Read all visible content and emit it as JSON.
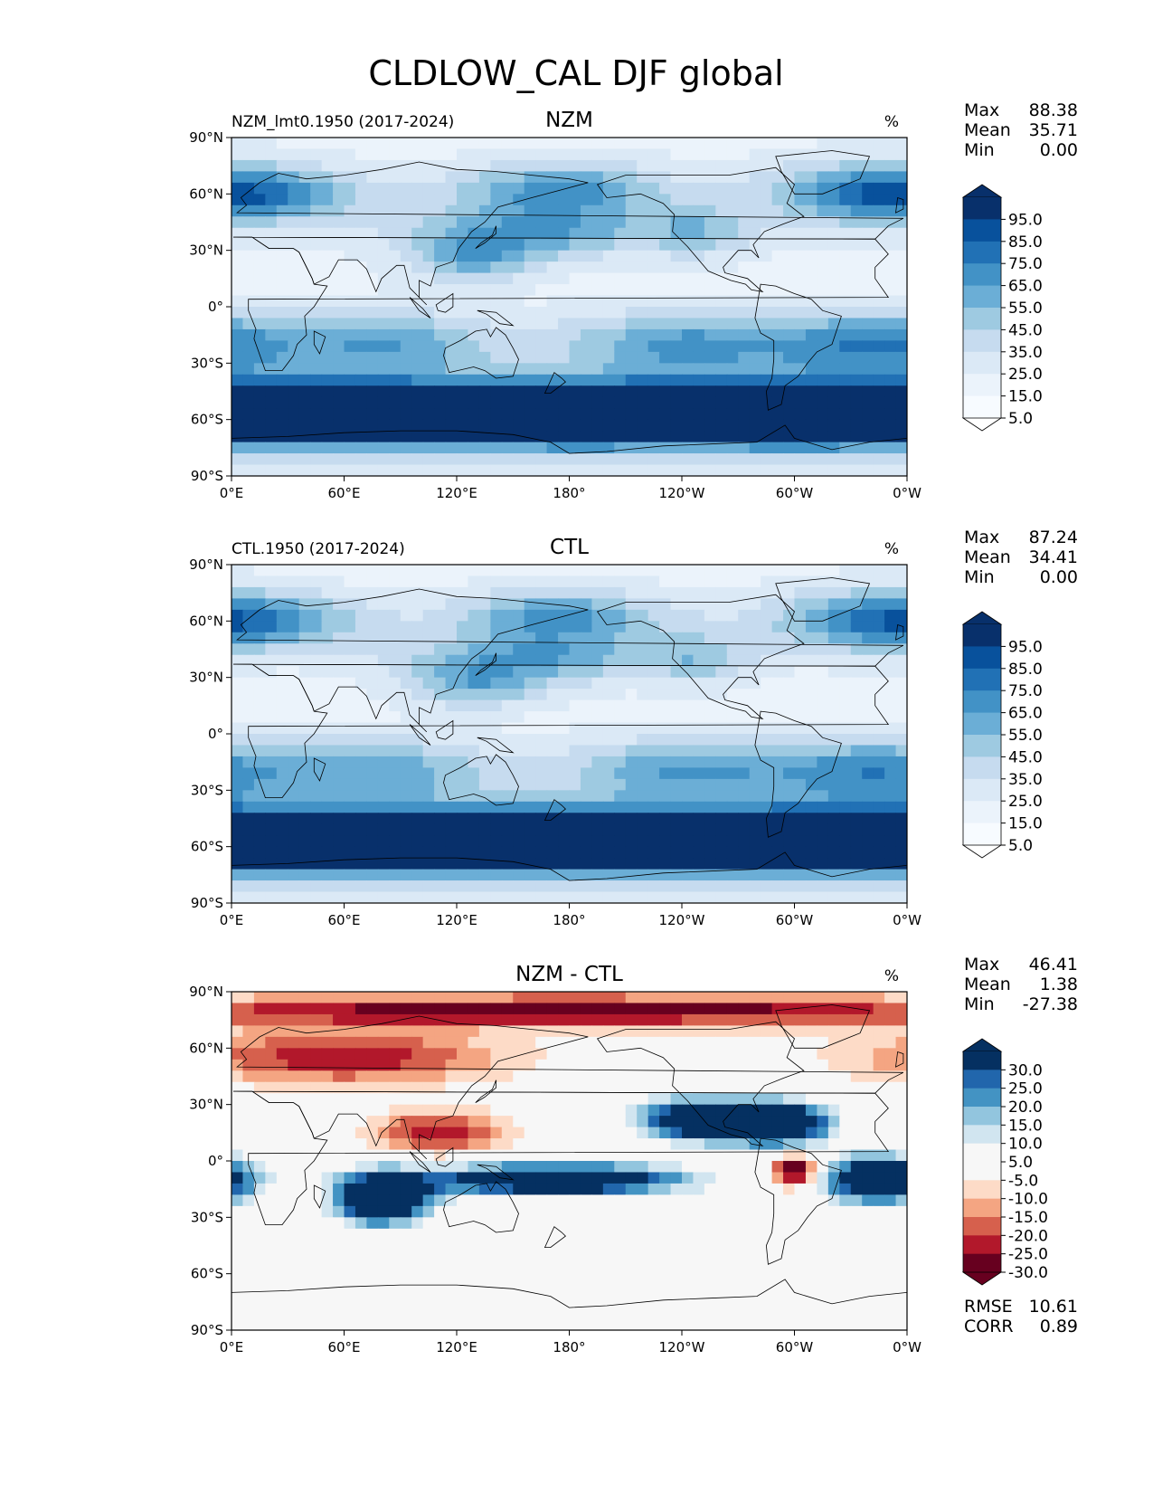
{
  "title": "CLDLOW_CAL DJF global",
  "axes": {
    "lat_ticks": [
      "90°N",
      "60°N",
      "30°N",
      "0°",
      "30°S",
      "60°S",
      "90°S"
    ],
    "lon_ticks": [
      "0°E",
      "60°E",
      "120°E",
      "180°",
      "120°W",
      "60°W",
      "0°W"
    ]
  },
  "panels": [
    {
      "id": "nzm",
      "title": "NZM",
      "left_label": "NZM_lmt0.1950 (2017-2024)",
      "units": "%",
      "stats": [
        {
          "label": "Max",
          "value": "88.38"
        },
        {
          "label": "Mean",
          "value": "35.71"
        },
        {
          "label": "Min",
          "value": "0.00"
        }
      ],
      "colorbar": {
        "type": "sequential",
        "labels": [
          "95.0",
          "85.0",
          "75.0",
          "65.0",
          "55.0",
          "45.0",
          "35.0",
          "25.0",
          "15.0",
          "5.0"
        ],
        "colors": [
          "#08306b",
          "#08519c",
          "#2171b5",
          "#4292c6",
          "#6baed6",
          "#9ecae1",
          "#c6dbef",
          "#dbe9f6",
          "#ebf3fb",
          "#f7fbff"
        ],
        "over": "#08306b",
        "under": "#ffffff"
      },
      "extra": []
    },
    {
      "id": "ctl",
      "title": "CTL",
      "left_label": "CTL.1950 (2017-2024)",
      "units": "%",
      "stats": [
        {
          "label": "Max",
          "value": "87.24"
        },
        {
          "label": "Mean",
          "value": "34.41"
        },
        {
          "label": "Min",
          "value": "0.00"
        }
      ],
      "colorbar": {
        "type": "sequential",
        "labels": [
          "95.0",
          "85.0",
          "75.0",
          "65.0",
          "55.0",
          "45.0",
          "35.0",
          "25.0",
          "15.0",
          "5.0"
        ],
        "colors": [
          "#08306b",
          "#08519c",
          "#2171b5",
          "#4292c6",
          "#6baed6",
          "#9ecae1",
          "#c6dbef",
          "#dbe9f6",
          "#ebf3fb",
          "#f7fbff"
        ],
        "over": "#08306b",
        "under": "#ffffff"
      },
      "extra": []
    },
    {
      "id": "diff",
      "title": "NZM - CTL",
      "left_label": "",
      "units": "%",
      "stats": [
        {
          "label": "Max",
          "value": "46.41"
        },
        {
          "label": "Mean",
          "value": "1.38"
        },
        {
          "label": "Min",
          "value": "-27.38"
        }
      ],
      "colorbar": {
        "type": "diverging",
        "labels": [
          "30.0",
          "25.0",
          "20.0",
          "15.0",
          "10.0",
          "5.0",
          "-5.0",
          "-10.0",
          "-15.0",
          "-20.0",
          "-25.0",
          "-30.0"
        ],
        "colors": [
          "#053061",
          "#2166ac",
          "#4393c3",
          "#92c5de",
          "#d1e5f0",
          "#f7f7f7",
          "#f7f7f7",
          "#fddbc7",
          "#f4a582",
          "#d6604d",
          "#b2182b",
          "#67001f"
        ],
        "over": "#053061",
        "under": "#67001f"
      },
      "extra": [
        {
          "label": "RMSE",
          "value": "10.61"
        },
        {
          "label": "CORR",
          "value": "0.89"
        }
      ]
    }
  ],
  "chart_data": [
    {
      "type": "heatmap",
      "title": "NZM",
      "subtitle": "NZM_lmt0.1950 (2017-2024)",
      "units": "%",
      "variable": "CLDLOW_CAL",
      "season": "DJF",
      "region": "global",
      "x_ticks": [
        "0°E",
        "60°E",
        "120°E",
        "180°",
        "120°W",
        "60°W",
        "0°W"
      ],
      "y_ticks": [
        "90°N",
        "60°N",
        "30°N",
        "0°",
        "30°S",
        "60°S",
        "90°S"
      ],
      "xlim": [
        0,
        360
      ],
      "ylim": [
        -90,
        90
      ],
      "levels": [
        0,
        5,
        15,
        25,
        35,
        45,
        55,
        65,
        75,
        85,
        95,
        100
      ],
      "max": 88.38,
      "mean": 35.71,
      "min": 0.0
    },
    {
      "type": "heatmap",
      "title": "CTL",
      "subtitle": "CTL.1950 (2017-2024)",
      "units": "%",
      "variable": "CLDLOW_CAL",
      "season": "DJF",
      "region": "global",
      "x_ticks": [
        "0°E",
        "60°E",
        "120°E",
        "180°",
        "120°W",
        "60°W",
        "0°W"
      ],
      "y_ticks": [
        "90°N",
        "60°N",
        "30°N",
        "0°",
        "30°S",
        "60°S",
        "90°S"
      ],
      "xlim": [
        0,
        360
      ],
      "ylim": [
        -90,
        90
      ],
      "levels": [
        0,
        5,
        15,
        25,
        35,
        45,
        55,
        65,
        75,
        85,
        95,
        100
      ],
      "max": 87.24,
      "mean": 34.41,
      "min": 0.0
    },
    {
      "type": "heatmap",
      "title": "NZM - CTL",
      "units": "%",
      "variable": "CLDLOW_CAL",
      "season": "DJF",
      "region": "global",
      "x_ticks": [
        "0°E",
        "60°E",
        "120°E",
        "180°",
        "120°W",
        "60°W",
        "0°W"
      ],
      "y_ticks": [
        "90°N",
        "60°N",
        "30°N",
        "0°",
        "30°S",
        "60°S",
        "90°S"
      ],
      "xlim": [
        0,
        360
      ],
      "ylim": [
        -90,
        90
      ],
      "levels": [
        -30,
        -25,
        -20,
        -15,
        -10,
        -5,
        5,
        10,
        15,
        20,
        25,
        30
      ],
      "max": 46.41,
      "mean": 1.38,
      "min": -27.38,
      "rmse": 10.61,
      "corr": 0.89
    }
  ]
}
